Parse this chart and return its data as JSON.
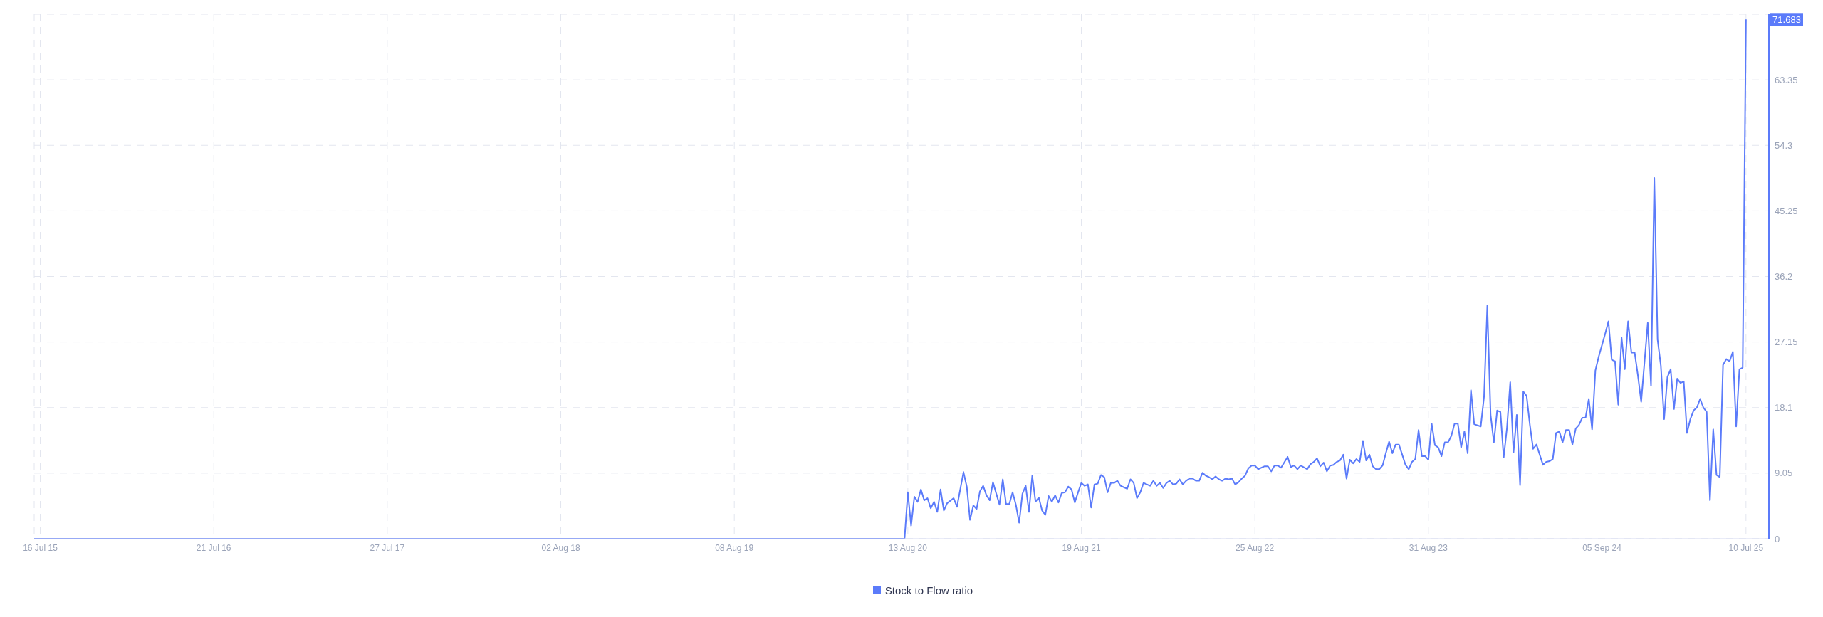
{
  "chart_data": {
    "type": "line",
    "x": [
      "2015-07-03",
      "2020-08-06",
      "2020-08-13",
      "2020-08-20",
      "2020-08-27",
      "2020-09-03",
      "2020-09-10",
      "2020-09-17",
      "2020-09-24",
      "2020-10-01",
      "2020-10-08",
      "2020-10-15",
      "2020-10-22",
      "2020-10-29",
      "2020-11-05",
      "2020-11-19",
      "2020-11-26",
      "2020-12-10",
      "2020-12-17",
      "2020-12-24",
      "2020-12-31",
      "2021-01-07",
      "2021-01-14",
      "2021-01-21",
      "2021-01-28",
      "2021-02-04",
      "2021-02-11",
      "2021-02-25",
      "2021-03-04",
      "2021-03-11",
      "2021-03-18",
      "2021-03-25",
      "2021-04-01",
      "2021-04-08",
      "2021-04-15",
      "2021-04-22",
      "2021-04-29",
      "2021-05-06",
      "2021-05-13",
      "2021-05-20",
      "2021-05-27",
      "2021-06-03",
      "2021-06-10",
      "2021-06-17",
      "2021-06-24",
      "2021-07-01",
      "2021-07-08",
      "2021-07-15",
      "2021-07-22",
      "2021-07-29",
      "2021-08-05",
      "2021-08-12",
      "2021-08-19",
      "2021-08-26",
      "2021-09-02",
      "2021-09-09",
      "2021-09-16",
      "2021-09-23",
      "2021-09-30",
      "2021-10-07",
      "2021-10-14",
      "2021-10-21",
      "2021-10-28",
      "2021-11-04",
      "2021-11-11",
      "2021-11-18",
      "2021-11-25",
      "2021-12-02",
      "2021-12-09",
      "2021-12-16",
      "2021-12-23",
      "2021-12-30",
      "2022-01-06",
      "2022-01-13",
      "2022-01-20",
      "2022-01-27",
      "2022-02-03",
      "2022-02-10",
      "2022-02-17",
      "2022-02-24",
      "2022-03-03",
      "2022-03-10",
      "2022-03-17",
      "2022-03-24",
      "2022-03-31",
      "2022-04-07",
      "2022-04-14",
      "2022-04-21",
      "2022-04-28",
      "2022-05-05",
      "2022-05-12",
      "2022-05-19",
      "2022-05-26",
      "2022-06-02",
      "2022-06-09",
      "2022-06-16",
      "2022-06-23",
      "2022-06-30",
      "2022-07-07",
      "2022-07-14",
      "2022-07-21",
      "2022-07-28",
      "2022-08-04",
      "2022-08-11",
      "2022-08-18",
      "2022-08-25",
      "2022-09-01",
      "2022-09-15",
      "2022-09-22",
      "2022-09-29",
      "2022-10-06",
      "2022-10-13",
      "2022-10-20",
      "2022-11-03",
      "2022-11-10",
      "2022-11-17",
      "2022-11-24",
      "2022-12-01",
      "2022-12-15",
      "2022-12-22",
      "2022-12-29",
      "2023-01-05",
      "2023-01-12",
      "2023-01-19",
      "2023-01-26",
      "2023-02-02",
      "2023-02-09",
      "2023-02-16",
      "2023-02-23",
      "2023-03-02",
      "2023-03-09",
      "2023-03-16",
      "2023-03-23",
      "2023-03-30",
      "2023-04-06",
      "2023-04-13",
      "2023-04-20",
      "2023-04-27",
      "2023-05-04",
      "2023-05-11",
      "2023-05-18",
      "2023-05-25",
      "2023-06-01",
      "2023-06-08",
      "2023-06-15",
      "2023-06-22",
      "2023-06-29",
      "2023-07-06",
      "2023-07-13",
      "2023-07-20",
      "2023-07-27",
      "2023-08-03",
      "2023-08-10",
      "2023-08-17",
      "2023-08-24",
      "2023-08-31",
      "2023-09-07",
      "2023-09-14",
      "2023-09-21",
      "2023-09-28",
      "2023-10-05",
      "2023-10-12",
      "2023-10-19",
      "2023-10-26",
      "2023-11-02",
      "2023-11-09",
      "2023-11-16",
      "2023-11-23",
      "2023-11-30",
      "2023-12-07",
      "2023-12-21",
      "2023-12-28",
      "2024-01-04",
      "2024-01-11",
      "2024-01-18",
      "2024-01-25",
      "2024-02-01",
      "2024-02-08",
      "2024-02-15",
      "2024-02-22",
      "2024-02-29",
      "2024-03-07",
      "2024-03-14",
      "2024-03-21",
      "2024-03-28",
      "2024-04-04",
      "2024-04-11",
      "2024-04-18",
      "2024-05-02",
      "2024-05-09",
      "2024-05-16",
      "2024-05-23",
      "2024-05-30",
      "2024-06-06",
      "2024-06-13",
      "2024-06-20",
      "2024-06-27",
      "2024-07-04",
      "2024-07-11",
      "2024-07-18",
      "2024-07-25",
      "2024-08-01",
      "2024-08-08",
      "2024-08-15",
      "2024-08-22",
      "2024-08-29",
      "2024-09-05",
      "2024-09-12",
      "2024-09-19",
      "2024-09-26",
      "2024-10-03",
      "2024-10-10",
      "2024-10-17",
      "2024-10-24",
      "2024-10-31",
      "2024-11-07",
      "2024-11-14",
      "2024-11-21",
      "2024-11-28",
      "2024-12-12",
      "2024-12-19",
      "2024-12-26",
      "2025-01-02",
      "2025-01-09",
      "2025-01-16",
      "2025-01-23",
      "2025-01-30",
      "2025-02-06",
      "2025-02-13",
      "2025-02-20",
      "2025-02-27",
      "2025-03-06",
      "2025-03-13",
      "2025-03-20",
      "2025-03-27",
      "2025-04-03",
      "2025-04-10",
      "2025-04-17",
      "2025-04-24",
      "2025-05-01",
      "2025-05-08",
      "2025-05-15",
      "2025-05-22",
      "2025-05-29",
      "2025-06-05",
      "2025-06-12",
      "2025-06-19",
      "2025-06-26",
      "2025-07-03",
      "2025-07-10"
    ],
    "series": [
      {
        "name": "Stock to Flow ratio",
        "color": "#5b7bfa",
        "values": [
          0,
          0,
          6.4,
          1.8,
          5.8,
          5.1,
          6.8,
          5.3,
          5.6,
          4.2,
          5.1,
          3.7,
          6.8,
          3.9,
          4.9,
          5.6,
          4.4,
          9.2,
          7.2,
          2.6,
          4.6,
          4.1,
          6.5,
          7.3,
          6.0,
          5.3,
          7.8,
          4.7,
          8.2,
          4.8,
          4.8,
          6.4,
          4.7,
          2.2,
          6.2,
          7.3,
          3.7,
          8.7,
          5.1,
          5.7,
          3.9,
          3.3,
          5.9,
          5.1,
          6.0,
          5.0,
          6.3,
          6.4,
          7.2,
          6.8,
          5.0,
          6.4,
          7.7,
          7.3,
          7.5,
          4.3,
          7.5,
          7.6,
          8.8,
          8.5,
          6.4,
          7.7,
          7.7,
          8.0,
          7.3,
          7.1,
          6.9,
          8.2,
          7.7,
          5.6,
          6.4,
          7.7,
          7.5,
          7.3,
          8.0,
          7.3,
          7.7,
          7.0,
          7.7,
          8.0,
          7.5,
          7.6,
          8.2,
          7.5,
          8.0,
          8.3,
          8.3,
          8.0,
          8.0,
          9.1,
          8.7,
          8.5,
          8.2,
          8.6,
          8.2,
          8.0,
          8.3,
          8.2,
          8.3,
          7.5,
          7.8,
          8.3,
          8.7,
          9.7,
          10.1,
          10.1,
          9.6,
          10.0,
          10.0,
          9.3,
          10.1,
          10.1,
          9.8,
          11.3,
          9.9,
          10.1,
          9.6,
          10.1,
          9.6,
          10.3,
          10.6,
          11.1,
          10.0,
          10.5,
          9.3,
          10.1,
          10.2,
          10.6,
          10.8,
          11.6,
          8.3,
          10.9,
          10.4,
          11.0,
          10.6,
          13.5,
          10.8,
          11.6,
          10.0,
          9.6,
          9.6,
          10.1,
          11.8,
          13.4,
          11.8,
          13.0,
          13.0,
          11.6,
          10.2,
          9.6,
          10.6,
          11.0,
          15.0,
          11.4,
          11.4,
          10.9,
          15.9,
          12.9,
          12.6,
          11.4,
          13.3,
          13.3,
          14.2,
          15.9,
          15.9,
          12.6,
          14.8,
          11.8,
          20.5,
          15.8,
          15.5,
          19.6,
          32.2,
          17.1,
          13.3,
          17.7,
          17.5,
          11.2,
          15.3,
          21.6,
          11.9,
          17.1,
          7.4,
          20.3,
          19.7,
          15.7,
          12.4,
          13.0,
          10.2,
          10.6,
          10.7,
          11.0,
          14.6,
          14.8,
          13.3,
          15.0,
          15.0,
          13.0,
          15.2,
          15.7,
          16.7,
          16.7,
          19.3,
          15.1,
          23.2,
          25.1,
          26.7,
          28.3,
          30.0,
          24.7,
          24.5,
          18.5,
          27.8,
          23.4,
          30.0,
          25.7,
          25.7,
          22.5,
          18.9,
          29.8,
          21.1,
          49.8,
          27.5,
          23.9,
          16.5,
          22.3,
          23.4,
          17.9,
          22.1,
          21.5,
          21.7,
          14.6,
          16.5,
          17.7,
          18.1,
          19.3,
          18.1,
          17.5,
          5.3,
          15.1,
          8.8,
          8.5,
          24.0,
          24.8,
          24.5,
          25.8,
          15.5,
          23.4,
          23.6,
          71.683
        ]
      }
    ],
    "xlim": [
      "2015-07-03",
      "2025-08-28"
    ],
    "xticks": [
      {
        "value": "2015-07-16",
        "label": "16 Jul 15"
      },
      {
        "value": "2016-07-21",
        "label": "21 Jul 16"
      },
      {
        "value": "2017-07-27",
        "label": "27 Jul 17"
      },
      {
        "value": "2018-08-02",
        "label": "02 Aug 18"
      },
      {
        "value": "2019-08-08",
        "label": "08 Aug 19"
      },
      {
        "value": "2020-08-13",
        "label": "13 Aug 20"
      },
      {
        "value": "2021-08-19",
        "label": "19 Aug 21"
      },
      {
        "value": "2022-08-25",
        "label": "25 Aug 22"
      },
      {
        "value": "2023-08-31",
        "label": "31 Aug 23"
      },
      {
        "value": "2024-09-05",
        "label": "05 Sep 24"
      },
      {
        "value": "2025-07-10",
        "label": "10 Jul 25"
      }
    ],
    "ylim": [
      0,
      72.4
    ],
    "yticks": [
      0,
      9.05,
      18.1,
      27.15,
      36.2,
      45.25,
      54.3,
      63.35
    ],
    "annotations": [
      {
        "text": "71.683",
        "x": "2025-07-10",
        "y": 71.683
      }
    ],
    "grid": true,
    "legend": "bottom"
  }
}
